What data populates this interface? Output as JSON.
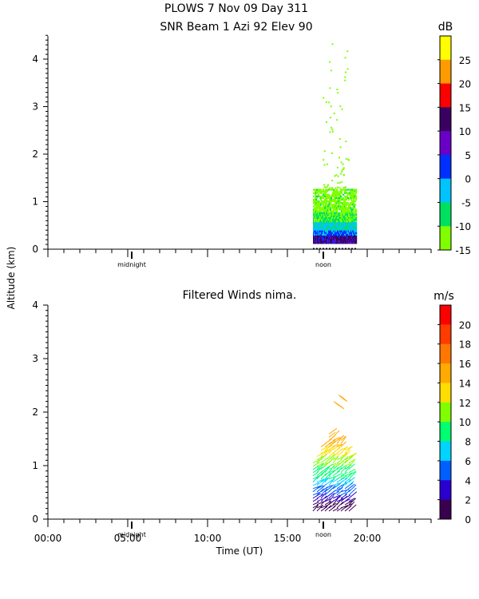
{
  "header": {
    "line1": "PLOWS   7 Nov 09 Day 311"
  },
  "shared": {
    "ylabel": "Altitude (km)",
    "xlabel": "Time (UT)",
    "midnight_label": "midnight",
    "noon_label": "noon",
    "x_tick_labels": [
      "00:00",
      "05:00",
      "10:00",
      "15:00",
      "20:00"
    ]
  },
  "chart_data": [
    {
      "type": "heatmap",
      "title": "SNR Beam 1 Azi  92 Elev 90",
      "colorbar_unit": "dB",
      "colorbar_labels": [
        "25",
        "20",
        "15",
        "10",
        "5",
        "0",
        "-5",
        "-10",
        "-15"
      ],
      "colorbar_colors": [
        "#ffff00",
        "#ff9a00",
        "#ff0000",
        "#3a0060",
        "#6a00c8",
        "#0030ff",
        "#00c4ff",
        "#00e060",
        "#7fff00"
      ],
      "y_ticks": [
        "4",
        "3",
        "2",
        "1",
        "0"
      ],
      "xlim_hours": [
        0,
        24
      ],
      "ylim_km": [
        0,
        4.5
      ],
      "data_region": {
        "x_start_hour": 16.6,
        "x_end_hour": 19.3,
        "alt_min_km": 0.15,
        "alt_max_km": 1.3,
        "sparse_to_km": 4.4
      }
    },
    {
      "type": "line",
      "title": "Filtered Winds nima.",
      "colorbar_unit": "m/s",
      "colorbar_labels": [
        "20",
        "18",
        "16",
        "14",
        "12",
        "10",
        "8",
        "6",
        "4",
        "2",
        "0"
      ],
      "colorbar_colors": [
        "#ff0000",
        "#ff3b00",
        "#ff7700",
        "#ffaa00",
        "#ffdd00",
        "#80ff00",
        "#00ff70",
        "#00d4ff",
        "#0060ff",
        "#2a00d0",
        "#3a0050"
      ],
      "y_ticks": [
        "4",
        "3",
        "2",
        "1",
        "0"
      ],
      "xlim_hours": [
        0,
        24
      ],
      "ylim_km": [
        0,
        4
      ],
      "data_region": {
        "x_start_hour": 16.6,
        "x_end_hour": 19.3,
        "alt_min_km": 0.15,
        "alt_max_km": 2.35
      }
    }
  ]
}
